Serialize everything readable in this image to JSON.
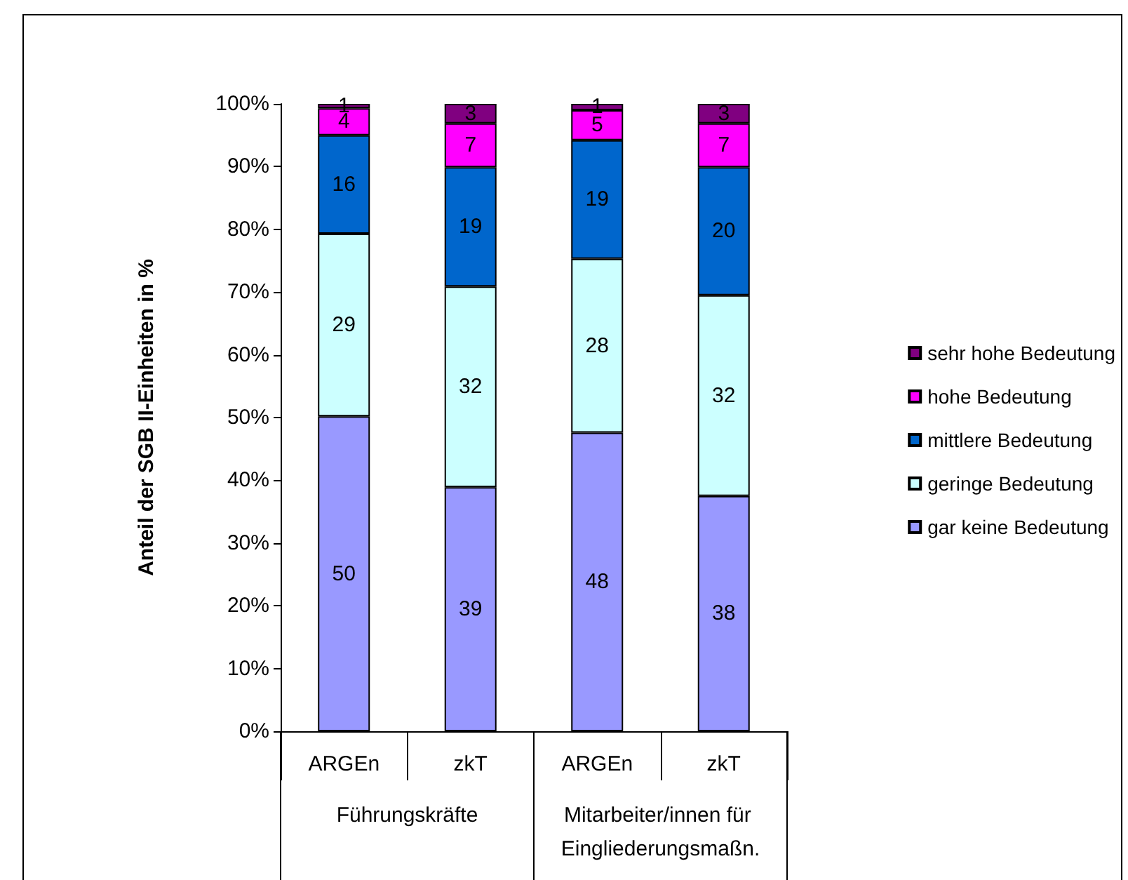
{
  "chart_data": {
    "type": "bar",
    "stacked": true,
    "ylabel": "Anteil der SGB II-Einheiten in %",
    "categories": [
      "ARGEn",
      "zkT",
      "ARGEn",
      "zkT"
    ],
    "annotations": [
      "Führungskräfte",
      "Mitarbeiter/innen für Eingliederungsmaßn."
    ],
    "series": [
      {
        "name": "gar keine Bedeutung",
        "color": "#9999ff",
        "values": [
          50.2,
          38.9,
          47.6,
          37.5
        ],
        "value_labels": [
          "50",
          "39",
          "48",
          "38"
        ]
      },
      {
        "name": "geringe Bedeutung",
        "color": "#ccffff",
        "values": [
          29.1,
          32.0,
          27.7,
          32.0
        ],
        "value_labels": [
          "29",
          "32",
          "28",
          "32"
        ]
      },
      {
        "name": "mittlere Bedeutung",
        "color": "#0066cc",
        "values": [
          15.7,
          19.0,
          18.9,
          20.4
        ],
        "value_labels": [
          "16",
          "19",
          "19",
          "20"
        ]
      },
      {
        "name": "hohe Bedeutung",
        "color": "#ff00ff",
        "values": [
          4.3,
          7.0,
          4.8,
          7.0
        ],
        "value_labels": [
          "4",
          "7",
          "5",
          "7"
        ]
      },
      {
        "name": "sehr hohe Bedeutung",
        "color": "#800080",
        "values": [
          0.7,
          3.1,
          1.0,
          3.1
        ],
        "value_labels": [
          "1",
          "3",
          "1",
          "3"
        ]
      }
    ],
    "ylim": [
      0,
      100
    ],
    "yticks": [
      {
        "value": 0,
        "label": "0%"
      },
      {
        "value": 10,
        "label": "10%"
      },
      {
        "value": 20,
        "label": "20%"
      },
      {
        "value": 30,
        "label": "30%"
      },
      {
        "value": 40,
        "label": "40%"
      },
      {
        "value": 50,
        "label": "50%"
      },
      {
        "value": 60,
        "label": "60%"
      },
      {
        "value": 70,
        "label": "70%"
      },
      {
        "value": 80,
        "label": "80%"
      },
      {
        "value": 90,
        "label": "90%"
      },
      {
        "value": 100,
        "label": "100%"
      }
    ],
    "grid": false,
    "legend": "right"
  }
}
